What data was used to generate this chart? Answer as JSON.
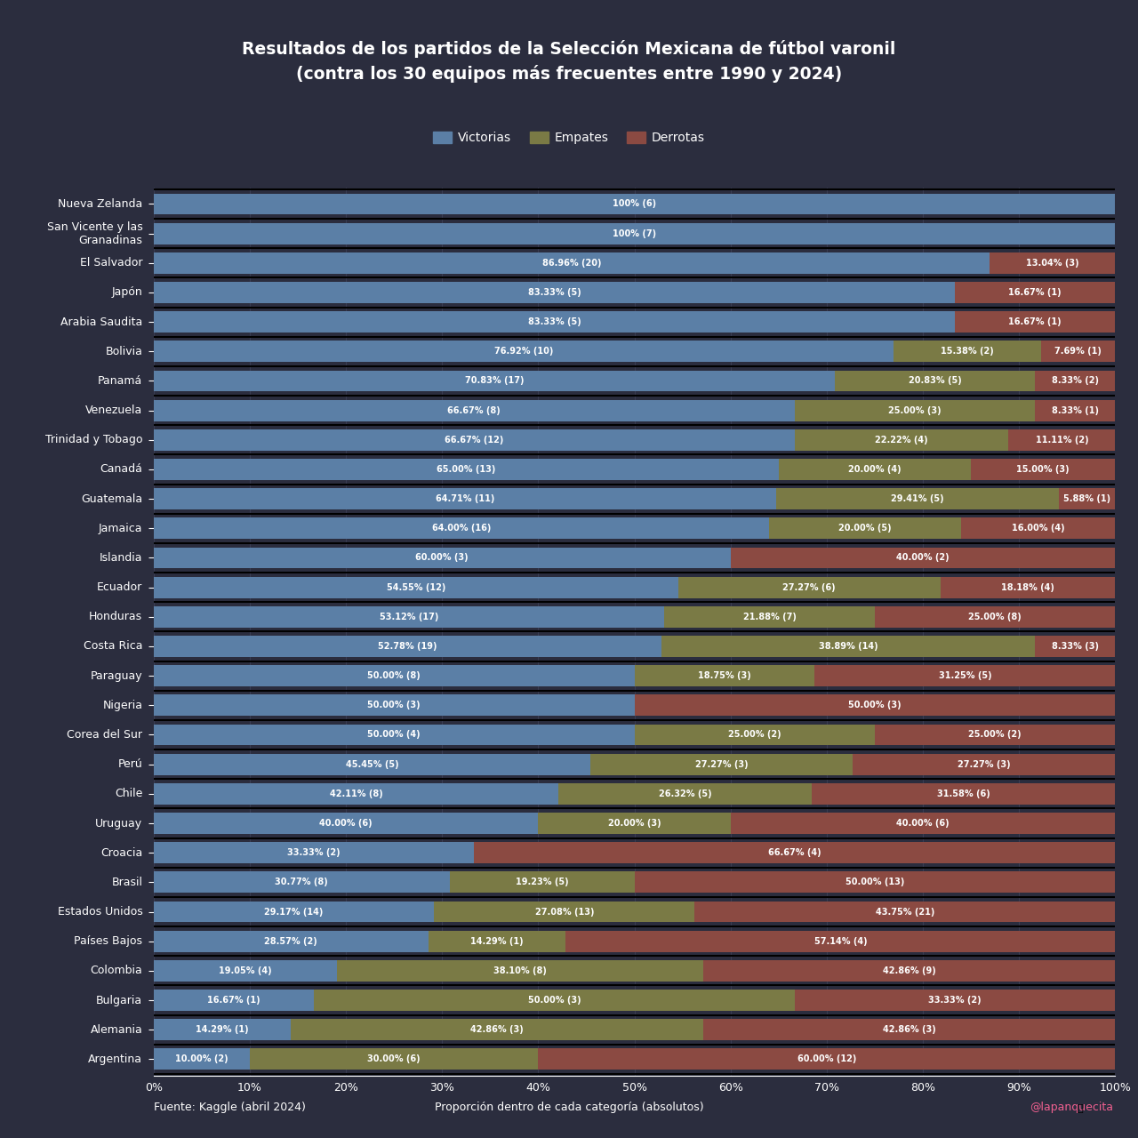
{
  "title_line1": "Resultados de los partidos de la Selección Mexicana de fútbol varonil",
  "title_line2": "(contra los 30 equipos más frecuentes entre 1990 y 2024)",
  "background_color": "#2b2d3e",
  "text_color": "#ffffff",
  "grid_color": "#3a3d52",
  "victorias_color": "#5b7fa6",
  "empates_color": "#7a7a45",
  "derrotas_color": "#8b4a42",
  "legend_labels": [
    "Victorias",
    "Empates",
    "Derrotas"
  ],
  "xlabel": "Proporción dentro de cada categoría (absolutos)",
  "footer_left": "Fuente: Kaggle (abril 2024)",
  "footer_right": "@lapanquecita",
  "teams": [
    "Nueva Zelanda",
    "San Vicente y las\nGranadinas",
    "El Salvador",
    "Japón",
    "Arabia Saudita",
    "Bolivia",
    "Panamá",
    "Venezuela",
    "Trinidad y Tobago",
    "Canadá",
    "Guatemala",
    "Jamaica",
    "Islandia",
    "Ecuador",
    "Honduras",
    "Costa Rica",
    "Paraguay",
    "Nigeria",
    "Corea del Sur",
    "Perú",
    "Chile",
    "Uruguay",
    "Croacia",
    "Brasil",
    "Estados Unidos",
    "Países Bajos",
    "Colombia",
    "Bulgaria",
    "Alemania",
    "Argentina"
  ],
  "victorias": [
    100.0,
    100.0,
    86.96,
    83.33,
    83.33,
    76.92,
    70.83,
    66.67,
    66.67,
    65.0,
    64.71,
    64.0,
    60.0,
    54.55,
    53.12,
    52.78,
    50.0,
    50.0,
    50.0,
    45.45,
    42.11,
    40.0,
    33.33,
    30.77,
    29.17,
    28.57,
    19.05,
    16.67,
    14.29,
    10.0
  ],
  "empates": [
    0.0,
    0.0,
    0.0,
    0.0,
    0.0,
    15.38,
    20.83,
    25.0,
    22.22,
    20.0,
    29.41,
    20.0,
    0.0,
    27.27,
    21.88,
    38.89,
    18.75,
    0.0,
    25.0,
    27.27,
    26.32,
    20.0,
    0.0,
    19.23,
    27.08,
    14.29,
    38.1,
    50.0,
    42.86,
    30.0
  ],
  "derrotas": [
    0.0,
    0.0,
    13.04,
    16.67,
    16.67,
    7.69,
    8.33,
    8.33,
    11.11,
    15.0,
    5.88,
    16.0,
    40.0,
    18.18,
    25.0,
    8.33,
    31.25,
    50.0,
    25.0,
    27.27,
    31.58,
    40.0,
    66.67,
    50.0,
    43.75,
    57.14,
    42.86,
    33.33,
    42.86,
    60.0
  ],
  "victorias_labels": [
    "100% (6)",
    "100% (7)",
    "86.96% (20)",
    "83.33% (5)",
    "83.33% (5)",
    "76.92% (10)",
    "70.83% (17)",
    "66.67% (8)",
    "66.67% (12)",
    "65.00% (13)",
    "64.71% (11)",
    "64.00% (16)",
    "60.00% (3)",
    "54.55% (12)",
    "53.12% (17)",
    "52.78% (19)",
    "50.00% (8)",
    "50.00% (3)",
    "50.00% (4)",
    "45.45% (5)",
    "42.11% (8)",
    "40.00% (6)",
    "33.33% (2)",
    "30.77% (8)",
    "29.17% (14)",
    "28.57% (2)",
    "19.05% (4)",
    "16.67% (1)",
    "14.29% (1)",
    "10.00% (2)"
  ],
  "empates_labels": [
    "",
    "",
    "",
    "",
    "",
    "15.38% (2)",
    "20.83% (5)",
    "25.00% (3)",
    "22.22% (4)",
    "20.00% (4)",
    "29.41% (5)",
    "20.00% (5)",
    "",
    "27.27% (6)",
    "21.88% (7)",
    "38.89% (14)",
    "18.75% (3)",
    "",
    "25.00% (2)",
    "27.27% (3)",
    "26.32% (5)",
    "20.00% (3)",
    "",
    "19.23% (5)",
    "27.08% (13)",
    "14.29% (1)",
    "38.10% (8)",
    "50.00% (3)",
    "42.86% (3)",
    "30.00% (6)"
  ],
  "derrotas_labels": [
    "",
    "",
    "13.04% (3)",
    "16.67% (1)",
    "16.67% (1)",
    "7.69% (1)",
    "8.33% (2)",
    "8.33% (1)",
    "11.11% (2)",
    "15.00% (3)",
    "5.88% (1)",
    "16.00% (4)",
    "40.00% (2)",
    "18.18% (4)",
    "25.00% (8)",
    "8.33% (3)",
    "31.25% (5)",
    "50.00% (3)",
    "25.00% (2)",
    "27.27% (3)",
    "31.58% (6)",
    "40.00% (6)",
    "66.67% (4)",
    "50.00% (13)",
    "43.75% (21)",
    "57.14% (4)",
    "42.86% (9)",
    "33.33% (2)",
    "42.86% (3)",
    "60.00% (12)"
  ]
}
